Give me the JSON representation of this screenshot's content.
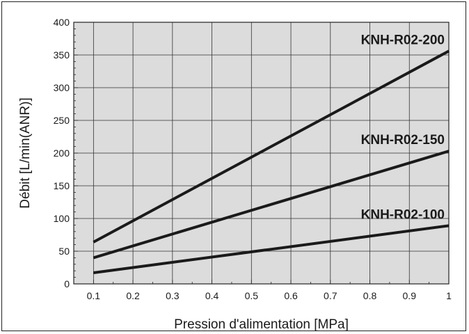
{
  "chart_data": {
    "type": "line",
    "title": "",
    "xlabel": "Pression d'alimentation [MPa]",
    "ylabel": "Débit [L/min(ANR)]",
    "xlim": [
      0.05,
      1.0
    ],
    "ylim": [
      0,
      400
    ],
    "x_ticks": [
      "0.1",
      "0.2",
      "0.3",
      "0.4",
      "0.5",
      "0.6",
      "0.7",
      "0.8",
      "0.9",
      "1"
    ],
    "y_ticks": [
      "0",
      "50",
      "100",
      "150",
      "200",
      "250",
      "300",
      "350",
      "400"
    ],
    "grid": true,
    "legend": "inline",
    "series": [
      {
        "name": "KNH-R02-200",
        "x": [
          0.1,
          1.0
        ],
        "y": [
          64,
          356
        ]
      },
      {
        "name": "KNH-R02-150",
        "x": [
          0.1,
          1.0
        ],
        "y": [
          40,
          203
        ]
      },
      {
        "name": "KNH-R02-100",
        "x": [
          0.1,
          1.0
        ],
        "y": [
          17,
          89
        ]
      }
    ]
  }
}
